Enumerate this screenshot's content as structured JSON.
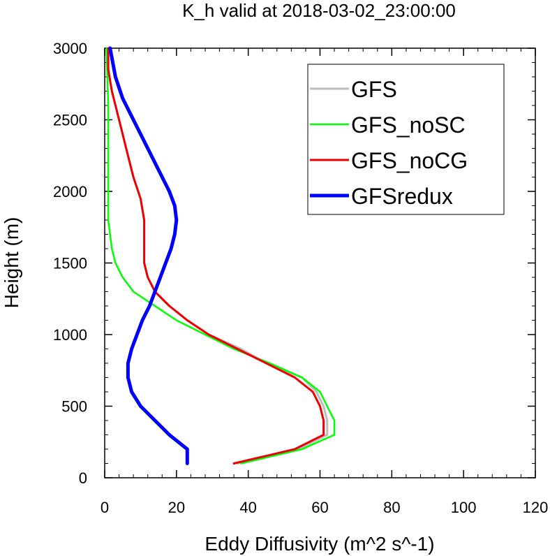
{
  "chart_data": {
    "type": "line",
    "title": "K_h valid at 2018-03-02_23:00:00",
    "xlabel": "Eddy Diffusivity (m^2 s^-1)",
    "ylabel": "Height (m)",
    "xlim": [
      0,
      120
    ],
    "ylim": [
      0,
      3000
    ],
    "xticks": [
      0,
      20,
      40,
      60,
      80,
      100,
      120
    ],
    "yticks": [
      0,
      500,
      1000,
      1500,
      2000,
      2500,
      3000
    ],
    "xtick_labels": [
      "0",
      "20",
      "40",
      "60",
      "80",
      "100",
      "120"
    ],
    "ytick_labels": [
      "0",
      "500",
      "1000",
      "1500",
      "2000",
      "2500",
      "3000"
    ],
    "grid": false,
    "legend_position": "top-right",
    "series": [
      {
        "name": "GFS",
        "color": "#bdbdbd",
        "width": 3,
        "points": [
          [
            37,
            100
          ],
          [
            54,
            200
          ],
          [
            62,
            300
          ],
          [
            62,
            400
          ],
          [
            61,
            500
          ],
          [
            59,
            600
          ],
          [
            55,
            700
          ],
          [
            45,
            800
          ],
          [
            38,
            900
          ],
          [
            29,
            1000
          ],
          [
            23,
            1100
          ],
          [
            18,
            1200
          ],
          [
            14,
            1300
          ],
          [
            12,
            1400
          ],
          [
            11,
            1500
          ],
          [
            11,
            1600
          ],
          [
            11,
            1800
          ],
          [
            10,
            1950
          ],
          [
            8,
            2100
          ],
          [
            6,
            2300
          ],
          [
            4,
            2500
          ],
          [
            2,
            2700
          ],
          [
            1,
            2850
          ],
          [
            1,
            3000
          ]
        ]
      },
      {
        "name": "GFS_noSC",
        "color": "#00ff00",
        "width": 2.5,
        "points": [
          [
            38,
            100
          ],
          [
            55,
            200
          ],
          [
            64,
            300
          ],
          [
            64,
            400
          ],
          [
            62,
            500
          ],
          [
            60,
            600
          ],
          [
            55,
            700
          ],
          [
            46,
            800
          ],
          [
            36,
            900
          ],
          [
            28,
            1000
          ],
          [
            20,
            1100
          ],
          [
            14,
            1200
          ],
          [
            8,
            1300
          ],
          [
            5,
            1400
          ],
          [
            3,
            1500
          ],
          [
            2,
            1600
          ],
          [
            1,
            1800
          ],
          [
            1,
            2000
          ],
          [
            1,
            2200
          ],
          [
            1,
            2600
          ],
          [
            0.5,
            3000
          ]
        ]
      },
      {
        "name": "GFS_noCG",
        "color": "#ee0000",
        "width": 3,
        "points": [
          [
            36,
            100
          ],
          [
            53,
            200
          ],
          [
            61,
            300
          ],
          [
            61,
            400
          ],
          [
            60,
            500
          ],
          [
            58,
            600
          ],
          [
            53,
            700
          ],
          [
            45,
            800
          ],
          [
            37,
            900
          ],
          [
            29,
            1000
          ],
          [
            23,
            1100
          ],
          [
            18,
            1200
          ],
          [
            14,
            1300
          ],
          [
            12,
            1400
          ],
          [
            11,
            1500
          ],
          [
            11,
            1600
          ],
          [
            11,
            1800
          ],
          [
            10,
            1950
          ],
          [
            8,
            2100
          ],
          [
            6,
            2300
          ],
          [
            4,
            2500
          ],
          [
            2,
            2700
          ],
          [
            1,
            2850
          ],
          [
            1,
            3000
          ]
        ]
      },
      {
        "name": "GFSredux",
        "color": "#0000ff",
        "width": 5,
        "points": [
          [
            23,
            100
          ],
          [
            23,
            200
          ],
          [
            18,
            300
          ],
          [
            14,
            400
          ],
          [
            10,
            500
          ],
          [
            7.5,
            600
          ],
          [
            6.5,
            700
          ],
          [
            6.5,
            800
          ],
          [
            7.5,
            900
          ],
          [
            9,
            1000
          ],
          [
            10.5,
            1100
          ],
          [
            12.5,
            1200
          ],
          [
            14,
            1300
          ],
          [
            15.5,
            1400
          ],
          [
            17,
            1500
          ],
          [
            18.5,
            1600
          ],
          [
            19.5,
            1700
          ],
          [
            20,
            1800
          ],
          [
            19.5,
            1900
          ],
          [
            18,
            2000
          ],
          [
            16,
            2100
          ],
          [
            14,
            2200
          ],
          [
            11,
            2350
          ],
          [
            8,
            2500
          ],
          [
            5,
            2650
          ],
          [
            3,
            2800
          ],
          [
            1.5,
            3000
          ]
        ]
      }
    ]
  }
}
